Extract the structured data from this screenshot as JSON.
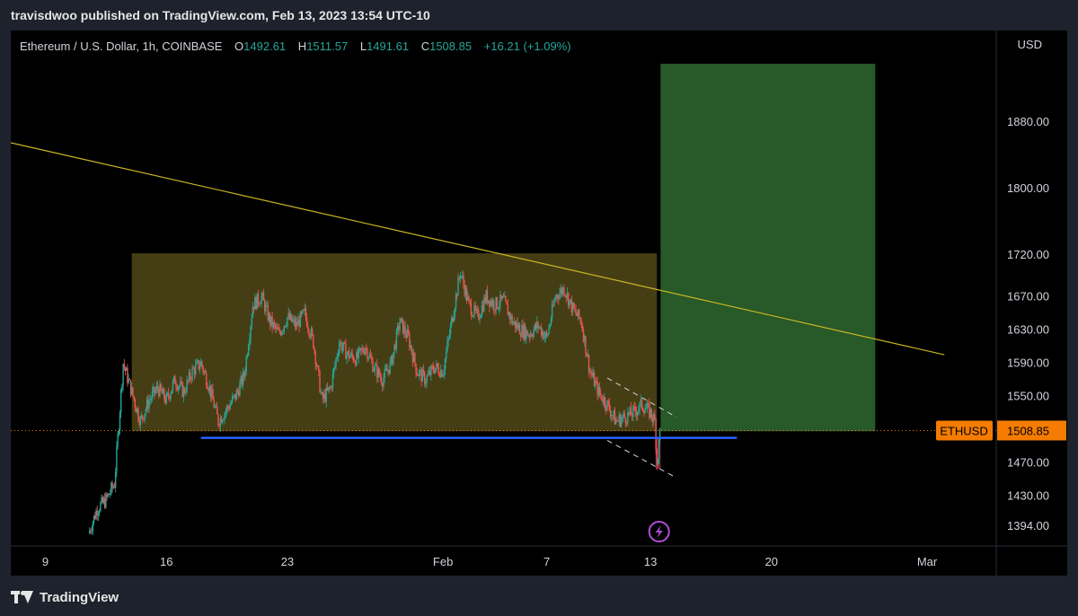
{
  "publisher_line": "travisdwoo published on TradingView.com, Feb 13, 2023 13:54 UTC-10",
  "footer_brand": "TradingView",
  "icons": {
    "brand_logo": "tradingview-logo-icon",
    "lightning": "lightning-icon"
  },
  "colors": {
    "background": "#000000",
    "up": "#26a69a",
    "down": "#ef5350",
    "range_box": "#4d4516",
    "target_box": "#2a5e2a",
    "stop_box": "#8c2432",
    "trendline": "#c9b624",
    "support": "#2962ff",
    "last_price": "#f57c00"
  },
  "legend": {
    "symbol": "Ethereum / U.S. Dollar, 1h, COINBASE",
    "o_label": "O",
    "o_value": "1492.61",
    "h_label": "H",
    "h_value": "1511.57",
    "l_label": "L",
    "l_value": "1491.61",
    "c_label": "C",
    "c_value": "1508.85",
    "change": "+16.21 (+1.09%)"
  },
  "chart_data": {
    "type": "candlestick",
    "symbol": "Ethereum / U.S. Dollar",
    "interval": "1h",
    "exchange": "COINBASE",
    "currency": "USD",
    "x_range": [
      "2023-01-07",
      "2023-03-05"
    ],
    "y_range": [
      1370,
      1990
    ],
    "y_ticks": [
      1394,
      1430,
      1470,
      1550,
      1590,
      1630,
      1670,
      1720,
      1800,
      1880
    ],
    "y_tick_labels": [
      "1394.00",
      "1430.00",
      "1470.00",
      "1550.00",
      "1590.00",
      "1630.00",
      "1670.00",
      "1720.00",
      "1800.00",
      "1880.00"
    ],
    "x_ticks": [
      {
        "date": "2023-01-09",
        "label": "9"
      },
      {
        "date": "2023-01-16",
        "label": "16"
      },
      {
        "date": "2023-01-23",
        "label": "23"
      },
      {
        "date": "2023-02-01",
        "label": "Feb"
      },
      {
        "date": "2023-02-07",
        "label": "7"
      },
      {
        "date": "2023-02-13",
        "label": "13"
      },
      {
        "date": "2023-02-20",
        "label": "20"
      },
      {
        "date": "2023-03-01",
        "label": "Mar"
      }
    ],
    "price_path": [
      [
        "2023-01-11T12:00",
        1385
      ],
      [
        "2023-01-12T00:00",
        1415
      ],
      [
        "2023-01-12T12:00",
        1425
      ],
      [
        "2023-01-13T00:00",
        1445
      ],
      [
        "2023-01-13T12:00",
        1590
      ],
      [
        "2023-01-14T00:00",
        1555
      ],
      [
        "2023-01-14T12:00",
        1520
      ],
      [
        "2023-01-15T00:00",
        1545
      ],
      [
        "2023-01-15T12:00",
        1560
      ],
      [
        "2023-01-16T00:00",
        1545
      ],
      [
        "2023-01-16T12:00",
        1570
      ],
      [
        "2023-01-17T00:00",
        1555
      ],
      [
        "2023-01-17T12:00",
        1580
      ],
      [
        "2023-01-18T00:00",
        1590
      ],
      [
        "2023-01-18T12:00",
        1560
      ],
      [
        "2023-01-19T00:00",
        1520
      ],
      [
        "2023-01-19T12:00",
        1535
      ],
      [
        "2023-01-20T00:00",
        1550
      ],
      [
        "2023-01-20T12:00",
        1575
      ],
      [
        "2023-01-21T00:00",
        1660
      ],
      [
        "2023-01-21T12:00",
        1670
      ],
      [
        "2023-01-22T00:00",
        1640
      ],
      [
        "2023-01-22T12:00",
        1625
      ],
      [
        "2023-01-23T00:00",
        1645
      ],
      [
        "2023-01-23T12:00",
        1635
      ],
      [
        "2023-01-24T00:00",
        1650
      ],
      [
        "2023-01-24T12:00",
        1615
      ],
      [
        "2023-01-25T00:00",
        1545
      ],
      [
        "2023-01-25T12:00",
        1560
      ],
      [
        "2023-01-26T00:00",
        1615
      ],
      [
        "2023-01-26T12:00",
        1600
      ],
      [
        "2023-01-27T00:00",
        1595
      ],
      [
        "2023-01-27T12:00",
        1610
      ],
      [
        "2023-01-28T00:00",
        1585
      ],
      [
        "2023-01-28T12:00",
        1570
      ],
      [
        "2023-01-29T00:00",
        1590
      ],
      [
        "2023-01-29T12:00",
        1640
      ],
      [
        "2023-01-30T00:00",
        1620
      ],
      [
        "2023-01-30T12:00",
        1580
      ],
      [
        "2023-01-31T00:00",
        1570
      ],
      [
        "2023-01-31T12:00",
        1585
      ],
      [
        "2023-02-01T00:00",
        1580
      ],
      [
        "2023-02-01T12:00",
        1640
      ],
      [
        "2023-02-02T00:00",
        1700
      ],
      [
        "2023-02-02T12:00",
        1660
      ],
      [
        "2023-02-03T00:00",
        1645
      ],
      [
        "2023-02-03T12:00",
        1670
      ],
      [
        "2023-02-04T00:00",
        1660
      ],
      [
        "2023-02-04T12:00",
        1665
      ],
      [
        "2023-02-05T00:00",
        1640
      ],
      [
        "2023-02-05T12:00",
        1630
      ],
      [
        "2023-02-06T00:00",
        1625
      ],
      [
        "2023-02-06T12:00",
        1635
      ],
      [
        "2023-02-07T00:00",
        1620
      ],
      [
        "2023-02-07T12:00",
        1670
      ],
      [
        "2023-02-08T00:00",
        1680
      ],
      [
        "2023-02-08T12:00",
        1655
      ],
      [
        "2023-02-09T00:00",
        1640
      ],
      [
        "2023-02-09T12:00",
        1580
      ],
      [
        "2023-02-10T00:00",
        1555
      ],
      [
        "2023-02-10T12:00",
        1540
      ],
      [
        "2023-02-11T00:00",
        1520
      ],
      [
        "2023-02-11T12:00",
        1525
      ],
      [
        "2023-02-12T00:00",
        1530
      ],
      [
        "2023-02-12T12:00",
        1540
      ],
      [
        "2023-02-13T00:00",
        1530
      ],
      [
        "2023-02-13T06:00",
        1520
      ],
      [
        "2023-02-13T09:00",
        1470
      ],
      [
        "2023-02-13T12:00",
        1492
      ],
      [
        "2023-02-13T13:00",
        1508.85
      ]
    ],
    "last_price": {
      "label": "ETHUSD",
      "value": "1508.85"
    },
    "drawings": {
      "range_box": {
        "x_from": "2023-01-14T00:00",
        "x_to": "2023-02-13T09:00",
        "y_from": 1508,
        "y_to": 1722
      },
      "target_box": {
        "x_from": "2023-02-13T14:00",
        "x_to": "2023-02-26T00:00",
        "y_from": 1508,
        "y_to": 1950
      },
      "stop_box": {
        "x_from": "2023-02-13T07:00",
        "x_to": "2023-02-13T14:00",
        "y_from": 1463,
        "y_to": 1500
      },
      "trendline": {
        "from": [
          "2023-01-07T00:00",
          1855
        ],
        "to": [
          "2023-03-02T00:00",
          1600
        ]
      },
      "support_line": {
        "x_from": "2023-01-18T00:00",
        "x_to": "2023-02-18T00:00",
        "y": 1500
      },
      "channel_upper": {
        "from": [
          "2023-02-10T12:00",
          1572
        ],
        "to": [
          "2023-02-14T12:00",
          1525
        ]
      },
      "channel_lower": {
        "from": [
          "2023-02-10T12:00",
          1497
        ],
        "to": [
          "2023-02-14T12:00",
          1452
        ]
      }
    },
    "grid": false,
    "legend_position": "top-left"
  }
}
